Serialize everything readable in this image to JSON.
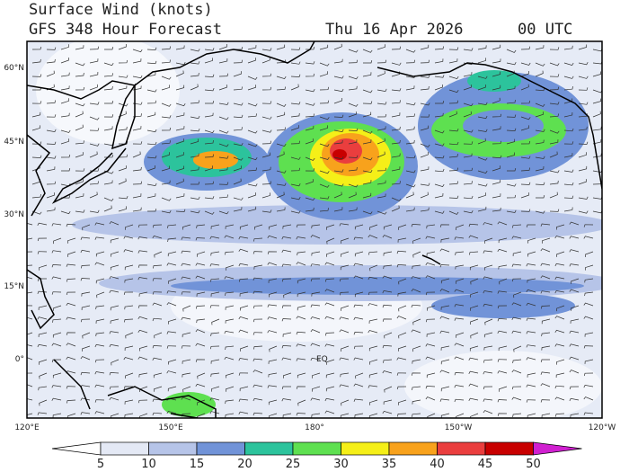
{
  "header": {
    "title": "Surface Wind (knots)",
    "subtitle": "GFS 348 Hour Forecast",
    "date": "Thu 16 Apr 2026",
    "time": "00 UTC"
  },
  "map": {
    "lat_labels": [
      "60°N",
      "45°N",
      "30°N",
      "15°N",
      "0°"
    ],
    "lon_labels": [
      "120°E",
      "150°E",
      "180°",
      "150°W",
      "120°W"
    ],
    "annotation": "EQ"
  },
  "legend": {
    "ticks": [
      5,
      10,
      15,
      20,
      25,
      30,
      35,
      40,
      45,
      50
    ],
    "colors": [
      "#ffffff",
      "#e4e9f5",
      "#b6c4e8",
      "#7193d8",
      "#2cc39c",
      "#5ee050",
      "#f5ef18",
      "#f8a21c",
      "#ea3e3e",
      "#c80000",
      "#d020d0"
    ]
  }
}
